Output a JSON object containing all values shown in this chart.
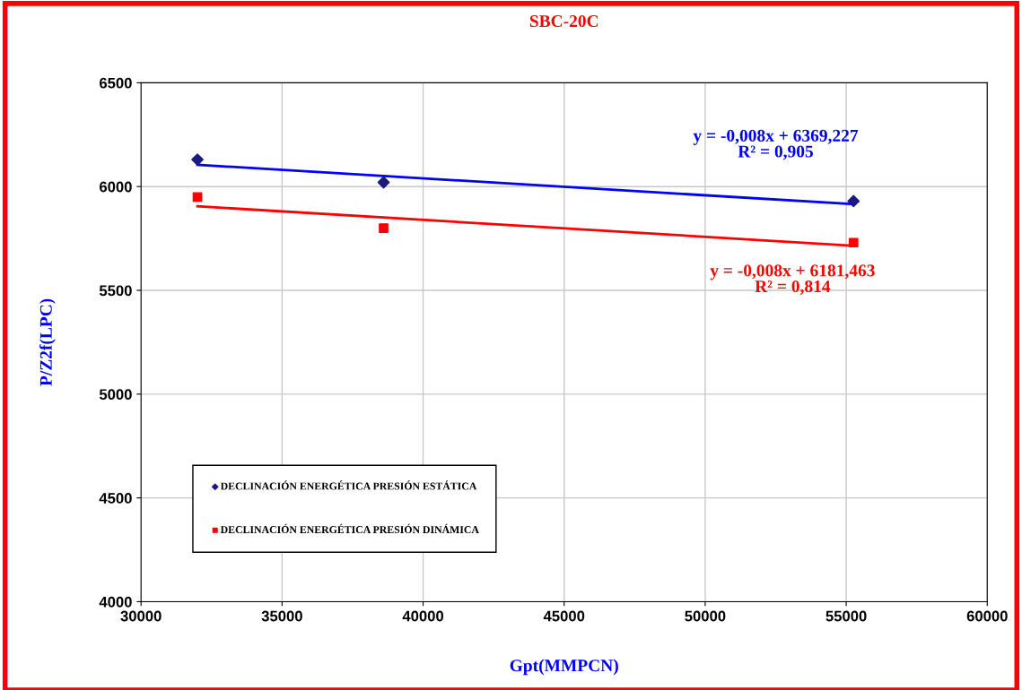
{
  "chart_data": {
    "type": "scatter",
    "title": "SBC-20C",
    "xlabel": "Gpt(MMPCN)",
    "ylabel": "P/Z2f(LPC)",
    "xlim": [
      30000,
      60000
    ],
    "xticks": [
      30000,
      35000,
      40000,
      45000,
      50000,
      55000,
      60000
    ],
    "ylim": [
      4000,
      6500
    ],
    "yticks": [
      4000,
      4500,
      5000,
      5500,
      6000,
      6500
    ],
    "grid": true,
    "legend": "bottom left",
    "series": [
      {
        "name": "DECLINACIÓN ENERGÉTICA PRESIÓN ESTÁTICA",
        "color": "#1a1a80",
        "marker": "diamond",
        "x": [
          32000,
          38600,
          55260
        ],
        "values": [
          6130,
          6020,
          5930
        ]
      },
      {
        "name": "DECLINACIÓN ENERGÉTICA PRESIÓN DINÁMICA",
        "color": "#ff0000",
        "marker": "square",
        "x": [
          32000,
          38600,
          55260
        ],
        "values": [
          5950,
          5800,
          5730
        ]
      },
      {
        "type": "line",
        "color": "#0000ff",
        "x": [
          32000,
          55260
        ],
        "values": [
          6105,
          5915
        ]
      },
      {
        "type": "line",
        "color": "#ff0000",
        "x": [
          32000,
          55260
        ],
        "values": [
          5905,
          5715
        ]
      }
    ],
    "annotations": [
      "y = -0,008x + 6369,227\nR² = 0,905",
      "y = -0,008x + 6181,463\nR² = 0,814"
    ]
  }
}
